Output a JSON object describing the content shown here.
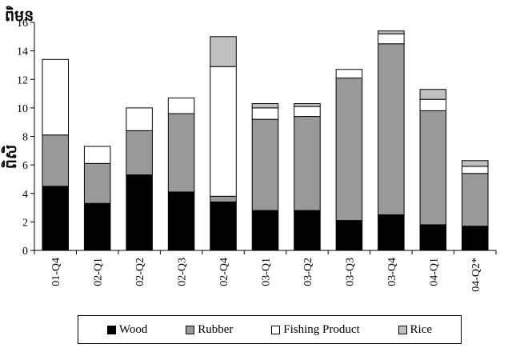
{
  "chart_data": {
    "type": "bar",
    "stacked": true,
    "title": "ពិមន",
    "ylabel": "ពិសិ",
    "xlabel": "",
    "ylim": [
      0,
      16
    ],
    "yticks": [
      "0",
      "2",
      "4",
      "6",
      "8",
      "10",
      "12",
      "14",
      "16"
    ],
    "categories": [
      "01-Q4",
      "02-Q1",
      "02-Q2",
      "02-Q3",
      "02-Q4",
      "03-Q1",
      "03-Q2",
      "03-Q3",
      "03-Q4",
      "04-Q1",
      "04-Q2*"
    ],
    "series": [
      {
        "name": "Wood",
        "color": "#000000",
        "values": [
          4.5,
          3.3,
          5.3,
          4.1,
          3.4,
          2.8,
          2.8,
          2.1,
          2.5,
          1.8,
          1.7
        ]
      },
      {
        "name": "Rubber",
        "color": "#999999",
        "values": [
          3.6,
          2.8,
          3.1,
          5.5,
          0.4,
          6.4,
          6.6,
          10.0,
          12.0,
          8.0,
          3.7
        ]
      },
      {
        "name": "Fishing Product",
        "color": "#ffffff",
        "values": [
          5.3,
          1.2,
          1.6,
          1.1,
          9.1,
          0.8,
          0.7,
          0.6,
          0.7,
          0.8,
          0.5
        ]
      },
      {
        "name": "Rice",
        "color": "#c0c0c0",
        "values": [
          0.0,
          0.0,
          0.0,
          0.0,
          2.1,
          0.3,
          0.2,
          0.0,
          0.2,
          0.7,
          0.4
        ]
      }
    ],
    "grid": false,
    "legend_position": "bottom"
  }
}
